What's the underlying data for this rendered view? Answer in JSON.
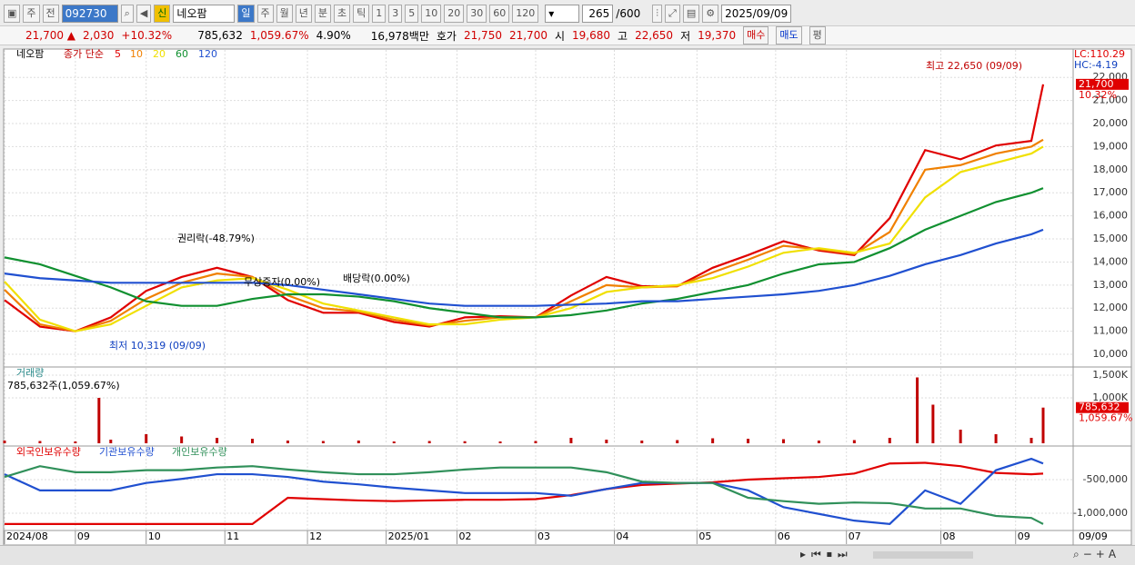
{
  "toolbar": {
    "period_type": "주",
    "prev": "전",
    "code": "092730",
    "badge": "신",
    "name": "네오팜",
    "units": [
      "일",
      "주",
      "월",
      "년",
      "분",
      "초",
      "틱"
    ],
    "intervals": [
      "1",
      "3",
      "5",
      "10",
      "20",
      "30",
      "60",
      "120"
    ],
    "count": "265",
    "max": "/600",
    "date": "2025/09/09"
  },
  "quote": {
    "price": "21,700 ▲",
    "change": "2,030",
    "rate": "+10.32%",
    "volume": "785,632",
    "volume_rate": "1,059.67%",
    "turnover": "4.90%",
    "amount": "16,978백만",
    "ask_label": "호가",
    "ask": "21,750",
    "bid": "21,700",
    "open_label": "시",
    "open": "19,680",
    "high_label": "고",
    "high": "22,650",
    "low_label": "저",
    "low": "19,370",
    "buy": "매수",
    "sell": "매도",
    "avg": "평"
  },
  "chart_data": [
    {
      "type": "line",
      "title": "네오팜",
      "legend_title": "종가 단순",
      "x": [
        0,
        9,
        18,
        27,
        36,
        45,
        54,
        63,
        72,
        81,
        90,
        99,
        108,
        117,
        126,
        135,
        144,
        153,
        162,
        171,
        180,
        189,
        198,
        207,
        216,
        225,
        234,
        243,
        252,
        261,
        264
      ],
      "series": [
        {
          "name": "5",
          "color": "#e00000",
          "values": [
            12350,
            11200,
            11000,
            11600,
            12750,
            13350,
            13750,
            13350,
            12350,
            11800,
            11800,
            11400,
            11200,
            11600,
            11650,
            11600,
            12550,
            13350,
            12950,
            12950,
            13750,
            14300,
            14900,
            14500,
            14300,
            15900,
            18850,
            18450,
            19050,
            19250,
            21700
          ]
        },
        {
          "name": "10",
          "color": "#f08000",
          "values": [
            12800,
            11300,
            11000,
            11450,
            12400,
            13100,
            13500,
            13350,
            12550,
            12000,
            11850,
            11500,
            11250,
            11450,
            11600,
            11600,
            12300,
            13000,
            12900,
            12950,
            13550,
            14100,
            14700,
            14550,
            14350,
            15300,
            18000,
            18200,
            18700,
            19000,
            19300
          ]
        },
        {
          "name": "20",
          "color": "#f0e000",
          "values": [
            13150,
            11500,
            11000,
            11300,
            12100,
            12900,
            13200,
            13300,
            12800,
            12200,
            11900,
            11600,
            11300,
            11300,
            11500,
            11600,
            12000,
            12700,
            12900,
            13000,
            13300,
            13800,
            14400,
            14600,
            14400,
            14800,
            16800,
            17900,
            18300,
            18700,
            19000
          ]
        },
        {
          "name": "60",
          "color": "#109030",
          "values": [
            14200,
            13900,
            13400,
            12900,
            12300,
            12100,
            12100,
            12400,
            12600,
            12600,
            12500,
            12300,
            12000,
            11800,
            11600,
            11600,
            11700,
            11900,
            12200,
            12400,
            12700,
            13000,
            13500,
            13900,
            14000,
            14600,
            15400,
            16000,
            16600,
            17000,
            17200
          ]
        },
        {
          "name": "120",
          "color": "#2050d0",
          "values": [
            13500,
            13300,
            13200,
            13100,
            13100,
            13100,
            13100,
            13100,
            13000,
            12800,
            12600,
            12400,
            12200,
            12100,
            12100,
            12100,
            12150,
            12200,
            12300,
            12300,
            12400,
            12500,
            12600,
            12750,
            13000,
            13400,
            13900,
            14300,
            14800,
            15200,
            15400
          ]
        }
      ],
      "xlim": [
        0,
        264
      ],
      "ylim": [
        9490,
        23190
      ],
      "yticks": [
        {
          "value": 10000,
          "label": "10,000"
        },
        {
          "value": 11000,
          "label": "11,000"
        },
        {
          "value": 12000,
          "label": "12,000"
        },
        {
          "value": 13000,
          "label": "13,000"
        },
        {
          "value": 14000,
          "label": "14,000"
        },
        {
          "value": 15000,
          "label": "15,000"
        },
        {
          "value": 16000,
          "label": "16,000"
        },
        {
          "value": 17000,
          "label": "17,000"
        },
        {
          "value": 18000,
          "label": "18,000"
        },
        {
          "value": 19000,
          "label": "19,000"
        },
        {
          "value": 20000,
          "label": "20,000"
        },
        {
          "value": 21000,
          "label": "21,000"
        },
        {
          "value": 22000,
          "label": "22,000"
        }
      ],
      "grid": true,
      "lc": "LC:110.29",
      "hc": "HC:-4.19",
      "current": {
        "value": 21700,
        "label": "21,700"
      },
      "current_change": "10.32%",
      "annotations": [
        "권리락(-48.79%)",
        "배당락(0.00%)",
        "무상증자(0.00%)",
        "최고 22,650 (09/09)",
        "최저 10,319 (09/09)"
      ]
    },
    {
      "type": "bar",
      "title": "거래량",
      "subtitle": "785,632주(1,059.67%)",
      "x": [
        0,
        9,
        18,
        24,
        27,
        36,
        45,
        54,
        63,
        72,
        81,
        90,
        99,
        108,
        117,
        126,
        135,
        144,
        153,
        162,
        171,
        180,
        189,
        198,
        207,
        216,
        225,
        232,
        236,
        243,
        252,
        261,
        264
      ],
      "values": [
        60,
        50,
        40,
        1000,
        80,
        200,
        150,
        120,
        100,
        60,
        50,
        60,
        40,
        50,
        45,
        40,
        50,
        120,
        80,
        60,
        70,
        110,
        100,
        90,
        60,
        70,
        120,
        1450,
        850,
        300,
        200,
        120,
        785.632
      ],
      "color": "#c00000",
      "xlim": [
        0,
        264
      ],
      "ylim": [
        0,
        1660
      ],
      "yticks": [
        {
          "value": 1500,
          "label": "1,500K"
        },
        {
          "value": 1000,
          "label": "1,000K"
        }
      ],
      "grid": true,
      "current": {
        "value": 785.632,
        "label": "785,632"
      },
      "current_change": "1,059.67%"
    },
    {
      "type": "line",
      "x": [
        0,
        9,
        18,
        27,
        36,
        45,
        54,
        63,
        72,
        81,
        90,
        99,
        108,
        117,
        126,
        135,
        144,
        153,
        162,
        171,
        180,
        189,
        198,
        207,
        216,
        225,
        234,
        243,
        252,
        261,
        264
      ],
      "series": [
        {
          "name": "외국인보유수량",
          "color": "#e00000",
          "values": [
            -1160000,
            -1160000,
            -1160000,
            -1160000,
            -1160000,
            -1160000,
            -1160000,
            -1160000,
            -770000,
            -790000,
            -810000,
            -820000,
            -810000,
            -800000,
            -800000,
            -790000,
            -730000,
            -640000,
            -580000,
            -560000,
            -540000,
            -500000,
            -480000,
            -460000,
            -410000,
            -260000,
            -250000,
            -300000,
            -400000,
            -420000,
            -410000
          ]
        },
        {
          "name": "기관보유수량",
          "color": "#2050d0",
          "values": [
            -420000,
            -660000,
            -660000,
            -660000,
            -550000,
            -490000,
            -420000,
            -420000,
            -460000,
            -530000,
            -570000,
            -620000,
            -660000,
            -700000,
            -700000,
            -700000,
            -740000,
            -640000,
            -550000,
            -550000,
            -550000,
            -660000,
            -910000,
            -1010000,
            -1110000,
            -1160000,
            -660000,
            -860000,
            -360000,
            -190000,
            -260000
          ]
        },
        {
          "name": "개인보유수량",
          "color": "#30905a",
          "values": [
            -460000,
            -300000,
            -390000,
            -390000,
            -360000,
            -360000,
            -320000,
            -300000,
            -350000,
            -390000,
            -420000,
            -420000,
            -390000,
            -350000,
            -320000,
            -320000,
            -320000,
            -390000,
            -530000,
            -550000,
            -550000,
            -770000,
            -820000,
            -860000,
            -840000,
            -850000,
            -930000,
            -930000,
            -1040000,
            -1070000,
            -1160000
          ]
        }
      ],
      "xlim": [
        0,
        264
      ],
      "ylim": [
        -1243000,
        -27000
      ],
      "yticks": [
        {
          "value": -500000,
          "label": "-500,000"
        },
        {
          "value": -1000000,
          "label": "-1,000,000"
        }
      ],
      "xticks": [
        {
          "value": 0,
          "label": "2024/08"
        },
        {
          "value": 18,
          "label": "09"
        },
        {
          "value": 36,
          "label": "10"
        },
        {
          "value": 56,
          "label": "11"
        },
        {
          "value": 77,
          "label": "12"
        },
        {
          "value": 97,
          "label": "2025/01"
        },
        {
          "value": 115,
          "label": "02"
        },
        {
          "value": 135,
          "label": "03"
        },
        {
          "value": 155,
          "label": "04"
        },
        {
          "value": 176,
          "label": "05"
        },
        {
          "value": 196,
          "label": "06"
        },
        {
          "value": 214,
          "label": "07"
        },
        {
          "value": 238,
          "label": "08"
        },
        {
          "value": 257,
          "label": "09"
        }
      ],
      "grid": true,
      "end_label": "09/09"
    }
  ]
}
